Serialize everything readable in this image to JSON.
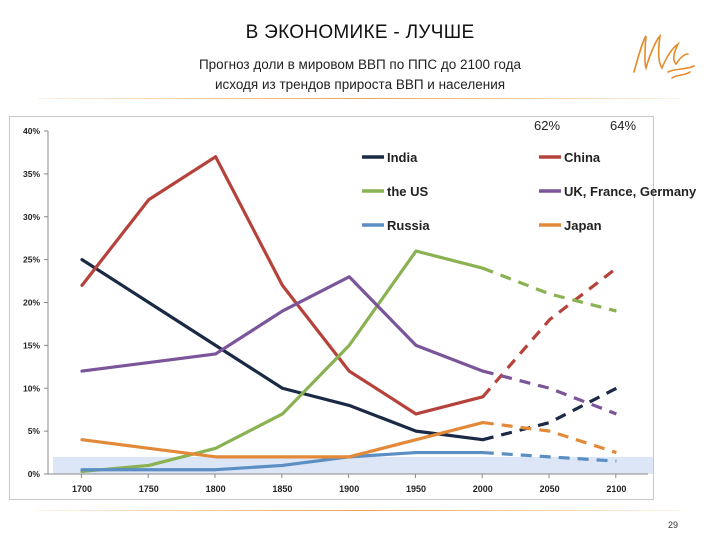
{
  "slide": {
    "title": "В ЭКОНОМИКЕ - ЛУЧШЕ",
    "subtitle_line1": "Прогноз доли в мировом ВВП по ППС до 2100 года",
    "subtitle_line2": "исходя из трендов прироста ВВП и населения",
    "page_number": "29",
    "logo_colors": "#e48a2b"
  },
  "annotations": {
    "top_value_1": "62%",
    "top_value_2": "64%"
  },
  "chart_data": {
    "type": "line",
    "categories": [
      "1700",
      "1750",
      "1800",
      "1850",
      "1900",
      "1950",
      "2000",
      "2050",
      "2100"
    ],
    "y_tick_labels": [
      "0%",
      "5%",
      "10%",
      "15%",
      "20%",
      "25%",
      "30%",
      "35%",
      "40%"
    ],
    "ylim": [
      0,
      40
    ],
    "y_unit": "%",
    "grid": false,
    "legend_position": "top-right, inside plot, two columns",
    "highlight_band": {
      "y_from": 0,
      "y_to": 2,
      "color": "#dce6f7"
    },
    "historical_through_index": 6,
    "projection_style": "dashed",
    "series": [
      {
        "name": "India",
        "color": "#1b2a44",
        "values": [
          25,
          20,
          15,
          10,
          8,
          5,
          4,
          6,
          10
        ]
      },
      {
        "name": "China",
        "color": "#b5433c",
        "values": [
          22,
          32,
          37,
          22,
          12,
          7,
          9,
          18,
          24
        ]
      },
      {
        "name": "the US",
        "color": "#8ab152",
        "values": [
          0.3,
          1,
          3,
          7,
          15,
          26,
          24,
          21,
          19
        ]
      },
      {
        "name": "UK, France, Germany",
        "color": "#7a559a",
        "values": [
          12,
          13,
          14,
          19,
          23,
          15,
          12,
          10,
          7
        ]
      },
      {
        "name": "Russia",
        "color": "#5b8fc4",
        "values": [
          0.5,
          0.5,
          0.5,
          1,
          2,
          2.5,
          2.5,
          2,
          1.5
        ]
      },
      {
        "name": "Japan",
        "color": "#e38a3a",
        "values": [
          4,
          3,
          2,
          2,
          2,
          4,
          6,
          5,
          2.5
        ]
      }
    ]
  }
}
